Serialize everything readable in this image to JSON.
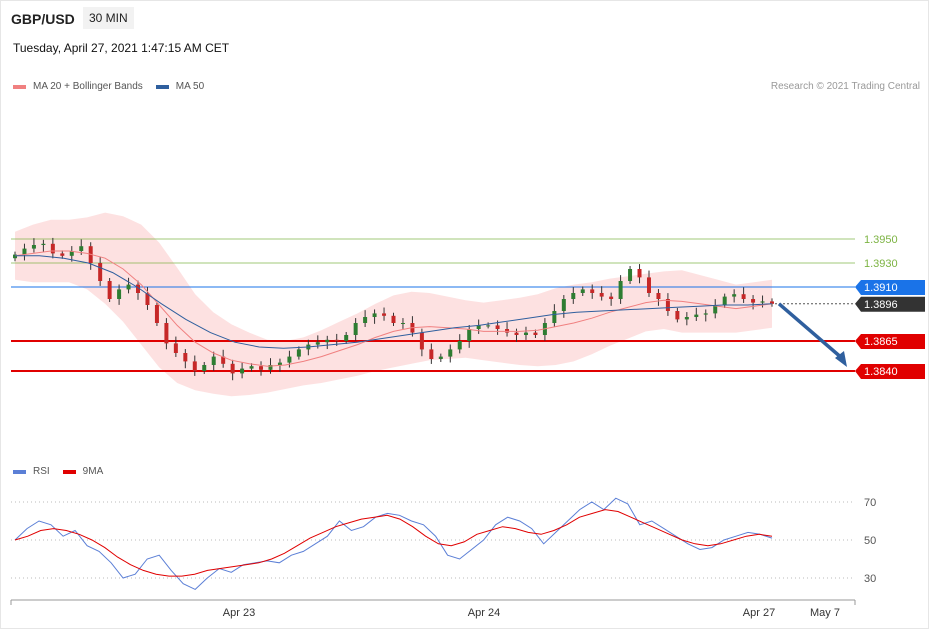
{
  "header": {
    "symbol": "GBP/USD",
    "timeframe": "30 MIN",
    "datetime": "Tuesday, April 27, 2021 1:47:15 AM CET",
    "credit": "Research © 2021 Trading Central"
  },
  "legend": {
    "ma20_label": "MA 20 + Bollinger Bands",
    "ma20_color": "#f08080",
    "ma50_label": "MA 50",
    "ma50_color": "#2f5f9e"
  },
  "chart_data": [
    {
      "type": "line",
      "y_ticks": [
        "1.3950",
        "1.3930",
        "1.3910",
        "1.3896",
        "1.3865",
        "1.3840"
      ],
      "levels": [
        {
          "value": 1.395,
          "label": "1.3950",
          "kind": "resistance-minor",
          "color": "#7cb342"
        },
        {
          "value": 1.393,
          "label": "1.3930",
          "kind": "resistance-minor",
          "color": "#7cb342"
        },
        {
          "value": 1.391,
          "label": "1.3910",
          "kind": "pivot",
          "color": "#1a73e8"
        },
        {
          "value": 1.3896,
          "label": "1.3896",
          "kind": "last-price",
          "color": "#333333"
        },
        {
          "value": 1.3865,
          "label": "1.3865",
          "kind": "support",
          "color": "#e00000"
        },
        {
          "value": 1.384,
          "label": "1.3840",
          "kind": "support",
          "color": "#e00000"
        }
      ],
      "x_labels": [
        "Apr 23",
        "Apr 24",
        "Apr 27",
        "May 7"
      ],
      "series": [
        {
          "values": [
            1.3937,
            1.3942,
            1.3945,
            1.3946,
            1.3938,
            1.3936,
            1.394,
            1.3944,
            1.393,
            1.3915,
            1.39,
            1.3908,
            1.3912,
            1.3905,
            1.3895,
            1.388,
            1.3863,
            1.3855,
            1.3848,
            1.384,
            1.3845,
            1.3852,
            1.3846,
            1.3838,
            1.3842,
            1.3844,
            1.3841,
            1.3845,
            1.3847,
            1.3852,
            1.3858,
            1.3862,
            1.3864,
            1.3866,
            1.3865,
            1.387,
            1.388,
            1.3885,
            1.3888,
            1.3886,
            1.388,
            1.388,
            1.3872,
            1.3858,
            1.385,
            1.3852,
            1.3858,
            1.3865,
            1.3875,
            1.3878,
            1.3878,
            1.3875,
            1.3872,
            1.387,
            1.3872,
            1.387,
            1.388,
            1.389,
            1.39,
            1.3905,
            1.3908,
            1.3905,
            1.3902,
            1.39,
            1.3915,
            1.3925,
            1.3918,
            1.3905,
            1.39,
            1.389,
            1.3883,
            1.3885,
            1.3887,
            1.3888,
            1.3895,
            1.3902,
            1.3904,
            1.39,
            1.3897,
            1.3898,
            1.3896
          ]
        },
        {
          "name": "MA 20",
          "values": [
            1.3936,
            1.3938,
            1.394,
            1.394,
            1.3938,
            1.3934,
            1.3925,
            1.3912,
            1.3895,
            1.3878,
            1.3864,
            1.3855,
            1.3849,
            1.3846,
            1.3844,
            1.3845,
            1.3848,
            1.3852,
            1.3857,
            1.3862,
            1.3868,
            1.3873,
            1.3876,
            1.3877,
            1.3876,
            1.3875,
            1.3873,
            1.3873,
            1.3873,
            1.3874,
            1.3877,
            1.388,
            1.3884,
            1.3889,
            1.3893,
            1.3897,
            1.3899,
            1.3898,
            1.3896,
            1.3894,
            1.3892,
            1.3894,
            1.3896
          ]
        },
        {
          "name": "MA 50",
          "values": [
            1.3936,
            1.3936,
            1.3934,
            1.393,
            1.3922,
            1.391,
            1.3896,
            1.3883,
            1.3872,
            1.3864,
            1.386,
            1.3859,
            1.386,
            1.3862,
            1.3864,
            1.3867,
            1.387,
            1.3873,
            1.3876,
            1.3878,
            1.3881,
            1.3884,
            1.3887,
            1.3889,
            1.389,
            1.3891,
            1.3892,
            1.3893,
            1.3894,
            1.3895,
            1.3895,
            1.3896
          ]
        }
      ],
      "notes": "Bearish arrow from 1.3896 toward 1.3840"
    },
    {
      "type": "line",
      "legend": [
        {
          "name": "RSI",
          "color": "#5b7fd6"
        },
        {
          "name": "9MA",
          "color": "#e00000"
        }
      ],
      "y_ticks": [
        "70",
        "50",
        "30"
      ],
      "ylim": [
        20,
        75
      ],
      "series": [
        {
          "name": "RSI",
          "values": [
            50,
            56,
            60,
            58,
            52,
            55,
            47,
            44,
            38,
            30,
            32,
            40,
            42,
            34,
            27,
            24,
            30,
            35,
            33,
            37,
            38,
            39,
            38,
            42,
            44,
            48,
            52,
            60,
            55,
            57,
            62,
            64,
            63,
            60,
            58,
            52,
            42,
            40,
            45,
            50,
            58,
            62,
            60,
            56,
            48,
            54,
            60,
            66,
            70,
            66,
            72,
            69,
            58,
            60,
            56,
            52,
            48,
            45,
            46,
            50,
            52,
            54,
            53,
            51
          ]
        },
        {
          "name": "9MA",
          "values": [
            50,
            52,
            55,
            56,
            55,
            53,
            50,
            46,
            41,
            37,
            34,
            32,
            31,
            31,
            32,
            34,
            35,
            36,
            37,
            38,
            40,
            43,
            47,
            51,
            54,
            57,
            59,
            61,
            62,
            63,
            61,
            57,
            52,
            48,
            47,
            49,
            53,
            55,
            57,
            56,
            54,
            53,
            55,
            58,
            62,
            64,
            66,
            65,
            62,
            59,
            56,
            53,
            50,
            48,
            47,
            48,
            50,
            52,
            53,
            52
          ]
        }
      ]
    }
  ]
}
